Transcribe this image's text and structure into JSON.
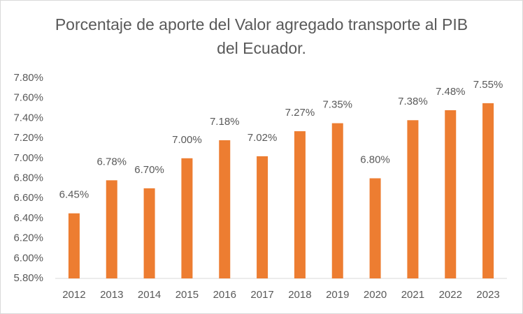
{
  "chart_data": {
    "type": "bar",
    "title": "Porcentaje de aporte del Valor agregado transporte al PIB del Ecuador.",
    "categories": [
      "2012",
      "2013",
      "2014",
      "2015",
      "2016",
      "2017",
      "2018",
      "2019",
      "2020",
      "2021",
      "2022",
      "2023"
    ],
    "values": [
      6.45,
      6.78,
      6.7,
      7.0,
      7.18,
      7.02,
      7.27,
      7.35,
      6.8,
      7.38,
      7.48,
      7.55
    ],
    "value_labels": [
      "6.45%",
      "6.78%",
      "6.70%",
      "7.00%",
      "7.18%",
      "7.02%",
      "7.27%",
      "7.35%",
      "6.80%",
      "7.38%",
      "7.48%",
      "7.55%"
    ],
    "color": "#ed7d31",
    "ylim": [
      5.8,
      7.8
    ],
    "yticks": [
      {
        "value": 5.8,
        "label": "5.80%"
      },
      {
        "value": 6.0,
        "label": "6.00%"
      },
      {
        "value": 6.2,
        "label": "6.20%"
      },
      {
        "value": 6.4,
        "label": "6.40%"
      },
      {
        "value": 6.6,
        "label": "6.60%"
      },
      {
        "value": 6.8,
        "label": "6.80%"
      },
      {
        "value": 7.0,
        "label": "7.00%"
      },
      {
        "value": 7.2,
        "label": "7.20%"
      },
      {
        "value": 7.4,
        "label": "7.40%"
      },
      {
        "value": 7.6,
        "label": "7.60%"
      },
      {
        "value": 7.8,
        "label": "7.80%"
      }
    ],
    "grid": false
  }
}
